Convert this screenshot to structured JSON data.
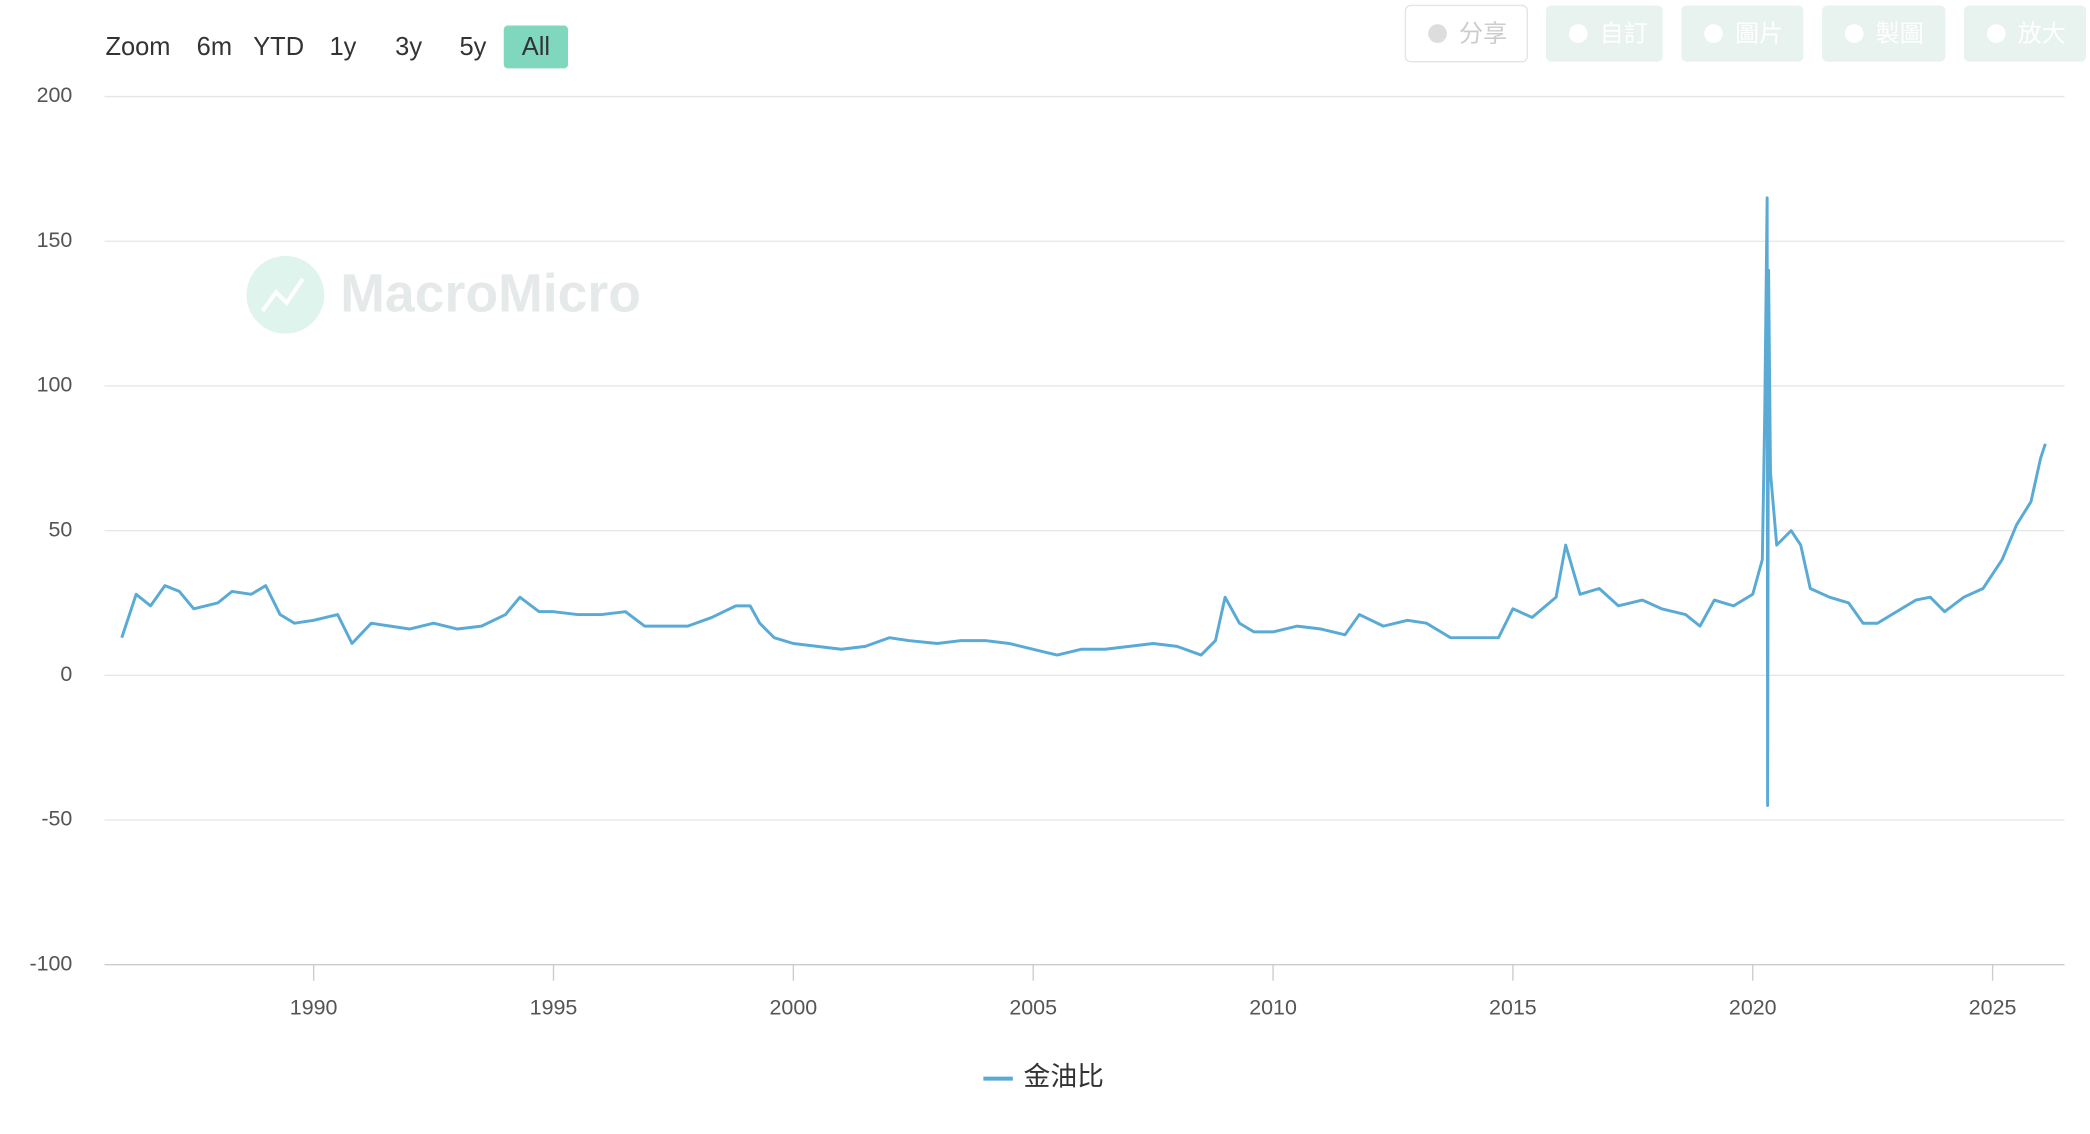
{
  "zoom_buttons": [
    "Zoom",
    "6m",
    "YTD",
    "1y",
    "3y",
    "5y",
    "All"
  ],
  "toolbar": [
    "分享",
    "自訂",
    "圖片",
    "製圖",
    "放大"
  ],
  "watermark": "MacroMicro",
  "chart_data": {
    "type": "line",
    "x": [
      1986.0,
      1986.3,
      1986.6,
      1986.9,
      1987.2,
      1987.5,
      1988.0,
      1988.3,
      1988.7,
      1989.0,
      1989.3,
      1989.6,
      1990.0,
      1990.5,
      1990.8,
      1991.2,
      1991.6,
      1992.0,
      1992.5,
      1993.0,
      1993.5,
      1994.0,
      1994.3,
      1994.7,
      1995.0,
      1995.5,
      1996.0,
      1996.5,
      1996.9,
      1997.3,
      1997.8,
      1998.3,
      1998.8,
      1999.1,
      1999.3,
      1999.6,
      2000.0,
      2000.5,
      2001.0,
      2001.5,
      2002.0,
      2002.4,
      2003.0,
      2003.5,
      2004.0,
      2004.5,
      2005.0,
      2005.5,
      2006.0,
      2006.5,
      2007.0,
      2007.5,
      2008.0,
      2008.5,
      2008.8,
      2009.0,
      2009.3,
      2009.6,
      2010.0,
      2010.5,
      2011.0,
      2011.5,
      2011.8,
      2012.3,
      2012.8,
      2013.2,
      2013.7,
      2014.2,
      2014.7,
      2015.0,
      2015.4,
      2015.9,
      2016.1,
      2016.4,
      2016.8,
      2017.2,
      2017.7,
      2018.1,
      2018.6,
      2018.9,
      2019.2,
      2019.6,
      2020.0,
      2020.2,
      2020.25,
      2020.3,
      2020.31,
      2020.33,
      2020.37,
      2020.5,
      2020.8,
      2021.0,
      2021.2,
      2021.6,
      2022.0,
      2022.3,
      2022.6,
      2023.0,
      2023.4,
      2023.7,
      2024.0,
      2024.4,
      2024.8,
      2025.2,
      2025.5,
      2025.8,
      2026.0,
      2026.1
    ],
    "series": [
      {
        "name": "金油比",
        "color": "#5aaad6",
        "values": [
          13,
          28,
          24,
          31,
          29,
          23,
          25,
          29,
          28,
          31,
          21,
          18,
          19,
          21,
          11,
          18,
          17,
          16,
          18,
          16,
          17,
          21,
          27,
          22,
          22,
          21,
          21,
          22,
          17,
          17,
          17,
          20,
          24,
          24,
          18,
          13,
          11,
          10,
          9,
          10,
          13,
          12,
          11,
          12,
          12,
          11,
          9,
          7,
          9,
          9,
          10,
          11,
          10,
          7,
          12,
          27,
          18,
          15,
          15,
          17,
          16,
          14,
          21,
          17,
          19,
          18,
          13,
          13,
          13,
          23,
          20,
          27,
          45,
          28,
          30,
          24,
          26,
          23,
          21,
          17,
          26,
          24,
          28,
          40,
          90,
          165,
          -45,
          140,
          70,
          45,
          50,
          45,
          30,
          27,
          25,
          18,
          18,
          22,
          26,
          27,
          22,
          27,
          30,
          40,
          52,
          60,
          75,
          80
        ]
      }
    ],
    "xlim": [
      1985.64,
      2026.5
    ],
    "ylim": [
      -100,
      200
    ],
    "xticks": [
      1990,
      1995,
      2000,
      2005,
      2010,
      2015,
      2020,
      2025
    ],
    "yticks": [
      -100,
      -50,
      0,
      50,
      100,
      150,
      200
    ],
    "grid": true
  }
}
